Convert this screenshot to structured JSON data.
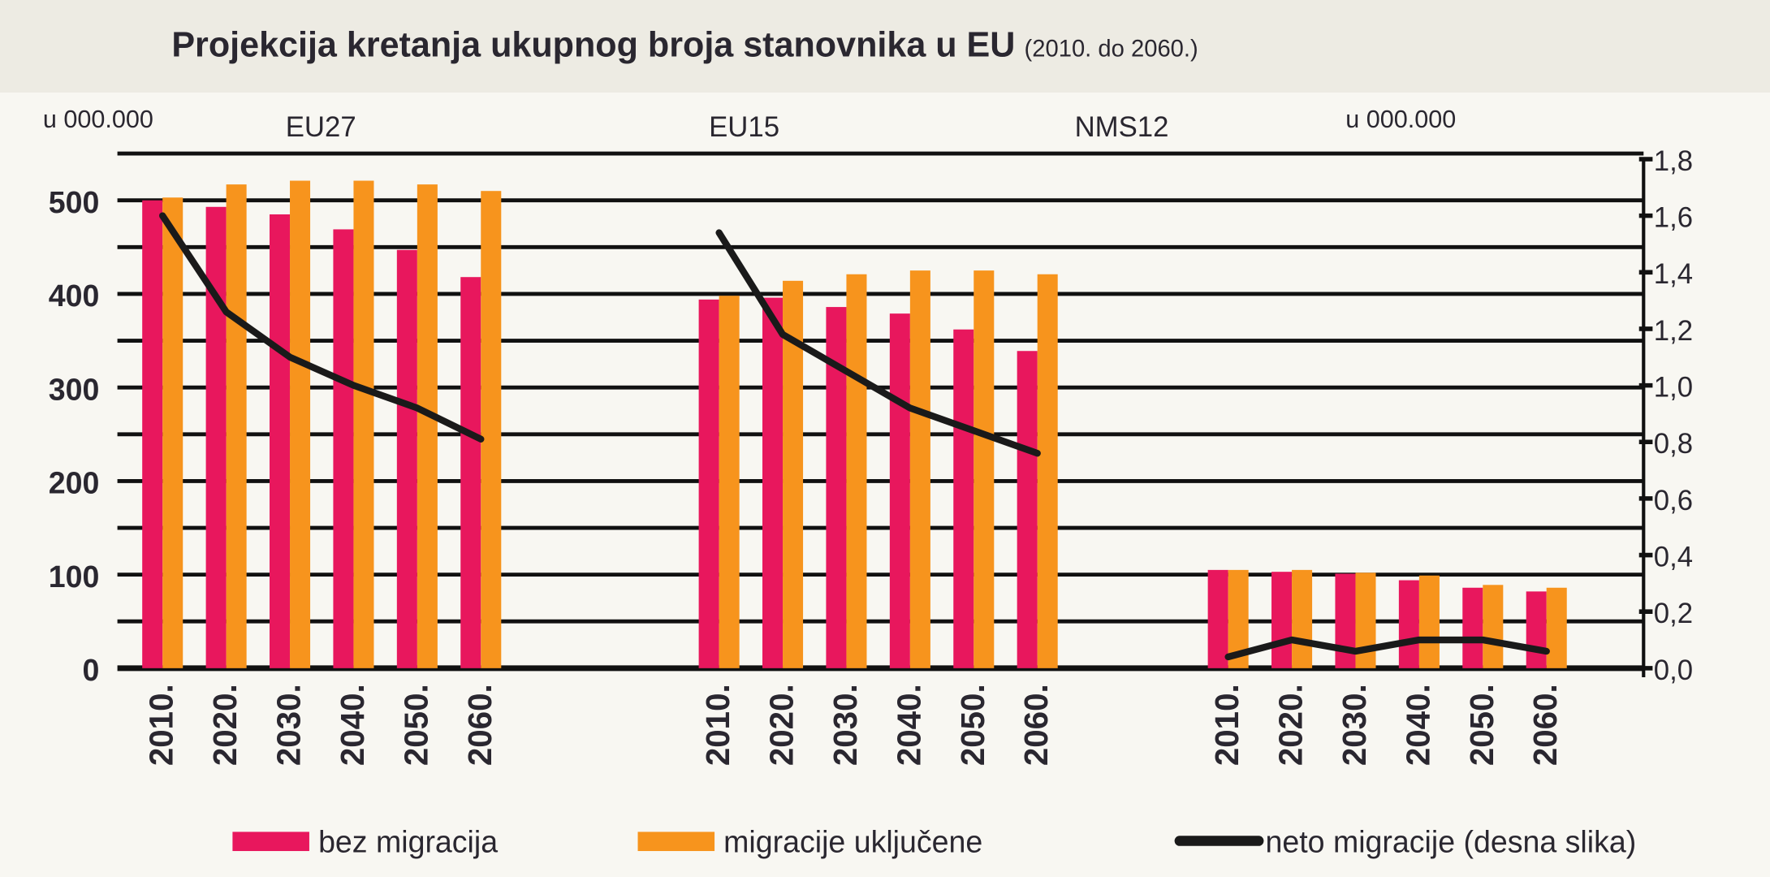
{
  "chart_data": {
    "type": "bar",
    "title": "Projekcija kretanja ukupnog broja stanovnika u EU",
    "subtitle": "(2010. do 2060.)",
    "ylabel_left": "u 000.000",
    "ylabel_right": "u 000.000",
    "ylim_left": [
      0,
      550
    ],
    "ylim_right": [
      0,
      1.8
    ],
    "left_ticks": [
      "0",
      "100",
      "200",
      "300",
      "400",
      "500"
    ],
    "left_tick_values": [
      0,
      100,
      200,
      300,
      400,
      500
    ],
    "right_ticks": [
      "0,0",
      "0,2",
      "0,4",
      "0,6",
      "0,8",
      "1,0",
      "1,2",
      "1,4",
      "1,6",
      "1,8"
    ],
    "right_tick_values": [
      0,
      0.2,
      0.4,
      0.6,
      0.8,
      1.0,
      1.2,
      1.4,
      1.6,
      1.8
    ],
    "grid": true,
    "legend_position": "bottom",
    "categories": [
      "2010.",
      "2020.",
      "2030.",
      "2040.",
      "2050.",
      "2060."
    ],
    "groups": [
      {
        "name": "EU27",
        "bez_migracija": [
          500,
          493,
          485,
          469,
          447,
          418
        ],
        "migracije_ukljucene": [
          503,
          517,
          521,
          521,
          517,
          510
        ],
        "neto_migracije": [
          1.6,
          1.26,
          1.1,
          1.0,
          0.92,
          0.81
        ]
      },
      {
        "name": "EU15",
        "bez_migracija": [
          394,
          396,
          386,
          379,
          362,
          339
        ],
        "migracije_ukljucene": [
          398,
          414,
          421,
          425,
          425,
          421
        ],
        "neto_migracije": [
          1.54,
          1.18,
          1.05,
          0.92,
          0.84,
          0.76
        ]
      },
      {
        "name": "NMS12",
        "bez_migracija": [
          105,
          103,
          101,
          94,
          86,
          82
        ],
        "migracije_ukljucene": [
          105,
          105,
          102,
          99,
          89,
          86
        ],
        "neto_migracije": [
          0.04,
          0.1,
          0.06,
          0.1,
          0.1,
          0.06
        ]
      }
    ],
    "legend": [
      {
        "key": "bez_migracija",
        "label": "bez migracija",
        "color": "#e8175d"
      },
      {
        "key": "migracije_ukljucene",
        "label": "migracije uključene",
        "color": "#f7941d"
      },
      {
        "key": "neto_migracije",
        "label": "neto migracije (desna slika)",
        "color": "#1a1a1a"
      }
    ]
  }
}
